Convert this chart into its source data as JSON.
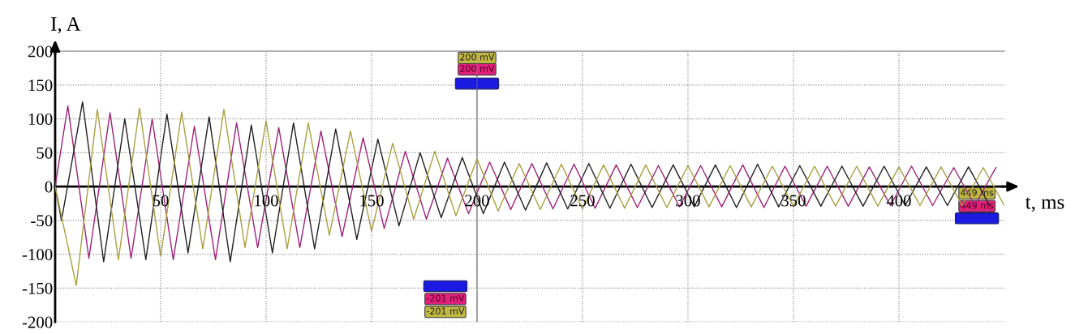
{
  "chart_data": {
    "type": "line",
    "xlabel": "t, ms",
    "ylabel": "I, A",
    "xlim": [
      0,
      450
    ],
    "ylim": [
      -200,
      200
    ],
    "xticks": [
      50,
      100,
      150,
      200,
      250,
      300,
      350,
      400
    ],
    "yticks": [
      -200,
      -150,
      -100,
      -50,
      0,
      50,
      100,
      150,
      200
    ],
    "grid": true,
    "legend": false,
    "marker": "none",
    "line_style": "solid",
    "ref_lines": [
      {
        "axis": "x",
        "value": 200,
        "color": "#808080",
        "line_style": "solid"
      }
    ],
    "series": [
      {
        "color": "#a0207a",
        "x": [
          0,
          6,
          16,
          26,
          36,
          46,
          56,
          66,
          76,
          86,
          96,
          106,
          116,
          126,
          136,
          146,
          156,
          166,
          176,
          186,
          196,
          206,
          216,
          226,
          236,
          246,
          256,
          266,
          276,
          286,
          296,
          306,
          316,
          326,
          336,
          346,
          356,
          366,
          376,
          386,
          396,
          406,
          416,
          426,
          436,
          446
        ],
        "values": [
          0,
          119,
          -106,
          109,
          -106,
          100,
          -108,
          89,
          -108,
          94,
          -90,
          87,
          -90,
          82,
          -74,
          72,
          -62,
          52,
          -48,
          42,
          -40,
          36,
          -34,
          34,
          -33,
          33,
          -32,
          32,
          -31,
          31,
          -30,
          31,
          -30,
          32,
          -31,
          30,
          -29,
          30,
          -29,
          29,
          -28,
          30,
          -28,
          28,
          -28,
          28
        ]
      },
      {
        "color": "#202020",
        "x": [
          0,
          3,
          13,
          23,
          33,
          43,
          53,
          63,
          73,
          83,
          93,
          103,
          113,
          123,
          133,
          143,
          153,
          163,
          173,
          183,
          193,
          203,
          213,
          223,
          233,
          243,
          253,
          263,
          273,
          283,
          293,
          303,
          313,
          323,
          333,
          343,
          353,
          363,
          373,
          383,
          393,
          403,
          413,
          423,
          433,
          443
        ],
        "values": [
          0,
          -50,
          125,
          -111,
          100,
          -108,
          107,
          -98,
          103,
          -111,
          91,
          -98,
          94,
          -92,
          85,
          -78,
          70,
          -58,
          50,
          -46,
          43,
          -40,
          36,
          -35,
          35,
          -33,
          34,
          -32,
          33,
          -31,
          32,
          -30,
          32,
          -31,
          33,
          -30,
          31,
          -29,
          30,
          -29,
          30,
          -28,
          29,
          -28,
          29,
          -28
        ]
      },
      {
        "color": "#a8a040",
        "x": [
          0,
          10,
          20,
          30,
          40,
          50,
          60,
          70,
          80,
          90,
          100,
          110,
          120,
          130,
          140,
          150,
          160,
          170,
          180,
          190,
          200,
          210,
          220,
          230,
          240,
          250,
          260,
          270,
          280,
          290,
          300,
          310,
          320,
          330,
          340,
          350,
          360,
          370,
          380,
          390,
          400,
          410,
          420,
          430,
          440,
          450
        ],
        "values": [
          0,
          -146,
          114,
          -108,
          116,
          -103,
          110,
          -92,
          114,
          -90,
          97,
          -92,
          94,
          -72,
          82,
          -66,
          64,
          -48,
          52,
          -43,
          41,
          -36,
          34,
          -34,
          33,
          -33,
          32,
          -32,
          32,
          -31,
          31,
          -30,
          31,
          -30,
          30,
          -29,
          30,
          -29,
          30,
          -29,
          29,
          -28,
          29,
          -28,
          28,
          -28
        ]
      }
    ],
    "annotations": [
      "200 mV",
      "200 mV",
      "-201 mV",
      "-201 mV",
      "449 ms",
      "449 ms"
    ]
  }
}
